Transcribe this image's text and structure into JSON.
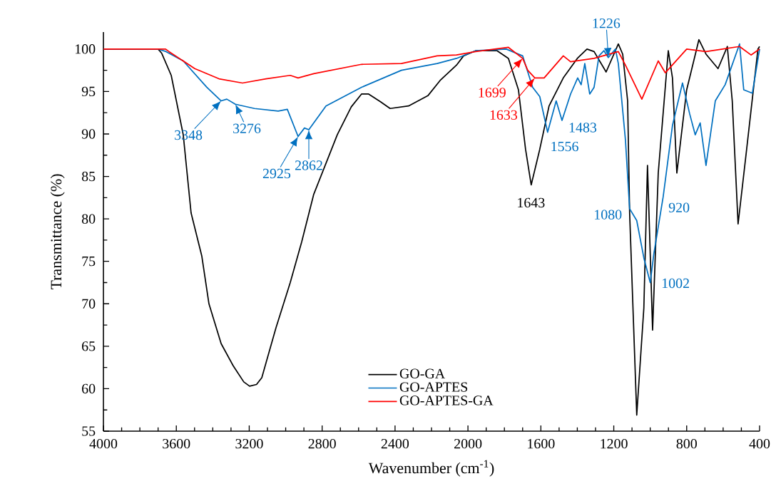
{
  "chart_data": {
    "type": "line",
    "xlabel": "Wavenumber (cm$^{-1}$)",
    "ylabel": "Transmittance (%)",
    "xlim": [
      4000,
      400
    ],
    "ylim": [
      55,
      102
    ],
    "xticks": [
      4000,
      3600,
      3200,
      2800,
      2400,
      2000,
      1600,
      1200,
      800,
      400
    ],
    "yticks": [
      55,
      60,
      65,
      70,
      75,
      80,
      85,
      90,
      95,
      100
    ],
    "legend": "bottom",
    "series": [
      {
        "name": "GO-GA",
        "color": "#000000",
        "x": [
          4000,
          3700,
          3680,
          3628,
          3562,
          3519,
          3460,
          3421,
          3354,
          3288,
          3230,
          3198,
          3160,
          3131,
          3053,
          2975,
          2912,
          2846,
          2717,
          2640,
          2584,
          2545,
          2480,
          2427,
          2326,
          2220,
          2153,
          2063,
          2024,
          1958,
          1840,
          1778,
          1723,
          1684,
          1653,
          1606,
          1555,
          1477,
          1400,
          1347,
          1308,
          1242,
          1175,
          1151,
          1124,
          1113,
          1074,
          1035,
          1015,
          987,
          956,
          901,
          878,
          854,
          800,
          733,
          694,
          628,
          577,
          550,
          518,
          471,
          409,
          400
        ],
        "values": [
          100,
          100,
          99.5,
          96.9,
          89.9,
          80.7,
          75.6,
          70.0,
          65.3,
          62.7,
          60.8,
          60.3,
          60.5,
          61.3,
          67.2,
          72.5,
          77.3,
          82.9,
          89.9,
          93.2,
          94.7,
          94.7,
          93.8,
          93.0,
          93.3,
          94.5,
          96.3,
          98.1,
          99.2,
          99.8,
          99.8,
          98.9,
          95.2,
          88.2,
          84.0,
          88.2,
          93.3,
          96.6,
          98.9,
          100,
          99.7,
          97.3,
          100.6,
          99.4,
          93.9,
          80.7,
          56.9,
          69.5,
          86.3,
          66.9,
          85.4,
          99.8,
          96.6,
          85.4,
          95.2,
          101.1,
          99.4,
          97.7,
          100.3,
          93.9,
          79.4,
          88.2,
          100,
          100.3
        ]
      },
      {
        "name": "GO-APTES",
        "color": "#0070c0",
        "x": [
          4000,
          3700,
          3656,
          3562,
          3433,
          3354,
          3323,
          3276,
          3171,
          3041,
          2991,
          2932,
          2897,
          2873,
          2779,
          2584,
          2365,
          2169,
          2063,
          1958,
          1790,
          1700,
          1645,
          1606,
          1563,
          1516,
          1484,
          1437,
          1398,
          1379,
          1359,
          1332,
          1308,
          1281,
          1254,
          1230,
          1191,
          1175,
          1136,
          1113,
          1074,
          1035,
          1000,
          980,
          929,
          878,
          823,
          784,
          753,
          726,
          694,
          643,
          589,
          510,
          487,
          440,
          400
        ],
        "values": [
          100,
          100,
          99.7,
          98.6,
          95.5,
          93.9,
          94.1,
          93.5,
          93.0,
          92.7,
          92.9,
          89.7,
          90.7,
          90.5,
          93.3,
          95.5,
          97.5,
          98.3,
          98.9,
          99.8,
          100,
          99.2,
          95.5,
          94.4,
          90.2,
          93.9,
          91.6,
          94.7,
          96.6,
          95.8,
          98.3,
          94.7,
          95.5,
          99.2,
          99.8,
          99.0,
          100,
          98.3,
          89.3,
          81.2,
          79.8,
          75.4,
          72.5,
          75.9,
          82.6,
          91.0,
          96.0,
          92.4,
          89.9,
          91.3,
          86.3,
          93.9,
          95.8,
          100.6,
          95.2,
          94.8,
          100
        ]
      },
      {
        "name": "GO-APTES-GA",
        "color": "#ff0000",
        "x": [
          4000,
          3660,
          3640,
          3499,
          3366,
          3237,
          3108,
          2975,
          2932,
          2846,
          2584,
          2365,
          2169,
          2063,
          1958,
          1778,
          1700,
          1672,
          1633,
          1582,
          1477,
          1437,
          1308,
          1175,
          1136,
          1046,
          956,
          917,
          800,
          694,
          510,
          447,
          400
        ],
        "values": [
          100,
          100,
          99.7,
          97.7,
          96.5,
          96.0,
          96.5,
          96.9,
          96.6,
          97.1,
          98.2,
          98.3,
          99.2,
          99.3,
          99.7,
          100.2,
          98.9,
          97.5,
          96.6,
          96.6,
          99.2,
          98.5,
          98.9,
          99.7,
          98.1,
          94.1,
          98.6,
          97.2,
          100,
          99.7,
          100.3,
          99.3,
          100
        ]
      }
    ],
    "annotations": [
      {
        "text": "3348",
        "x": 3354,
        "y": 93.9
      },
      {
        "text": "3276",
        "x": 3276,
        "y": 93.5
      },
      {
        "text": "2925",
        "x": 2932,
        "y": 89.7
      },
      {
        "text": "2862",
        "x": 2873,
        "y": 90.5
      },
      {
        "text": "1699",
        "x": 1700,
        "y": 98.9
      },
      {
        "text": "1633",
        "x": 1633,
        "y": 96.6
      },
      {
        "text": "1643",
        "x": 1643,
        "y": 84.0
      },
      {
        "text": "1556",
        "x": 1556,
        "y": 90.2
      },
      {
        "text": "1483",
        "x": 1484,
        "y": 91.6
      },
      {
        "text": "1226",
        "x": 1230,
        "y": 99.0
      },
      {
        "text": "1080",
        "x": 1080,
        "y": 80
      },
      {
        "text": "920",
        "x": 920,
        "y": 82
      },
      {
        "text": "1002",
        "x": 1002,
        "y": 72.5
      }
    ]
  }
}
